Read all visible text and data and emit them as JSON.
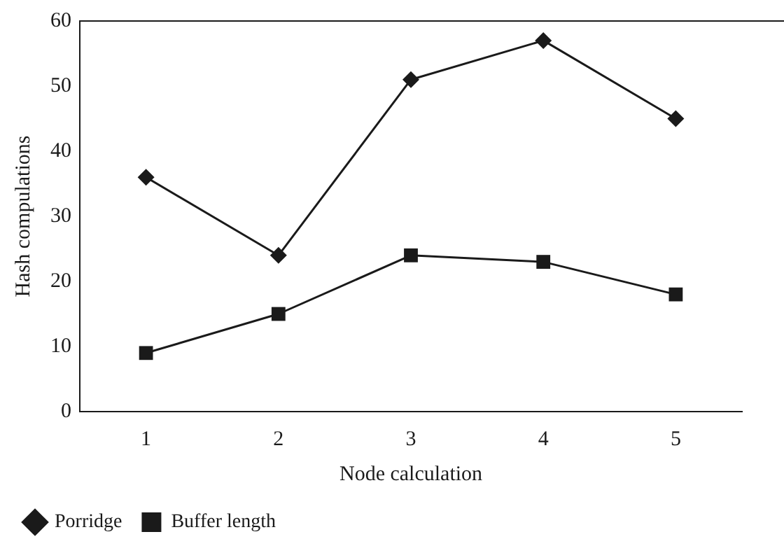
{
  "chart_data": {
    "type": "line",
    "xlabel": "Node calculation",
    "ylabel": "Hash compulations",
    "categories": [
      "1",
      "2",
      "3",
      "4",
      "5"
    ],
    "series": [
      {
        "name": "Porridge",
        "color": "#1a1a1a",
        "marker": "diamond",
        "values": [
          36,
          24,
          51,
          57,
          45
        ]
      },
      {
        "name": "Buffer length",
        "color": "#1a1a1a",
        "marker": "square",
        "values": [
          9,
          15,
          24,
          23,
          18
        ]
      }
    ],
    "ylim": [
      0,
      60
    ],
    "yticks": [
      0,
      10,
      20,
      30,
      40,
      50,
      60
    ],
    "grid": false,
    "legend": "bottom left",
    "line_style": "solid"
  }
}
